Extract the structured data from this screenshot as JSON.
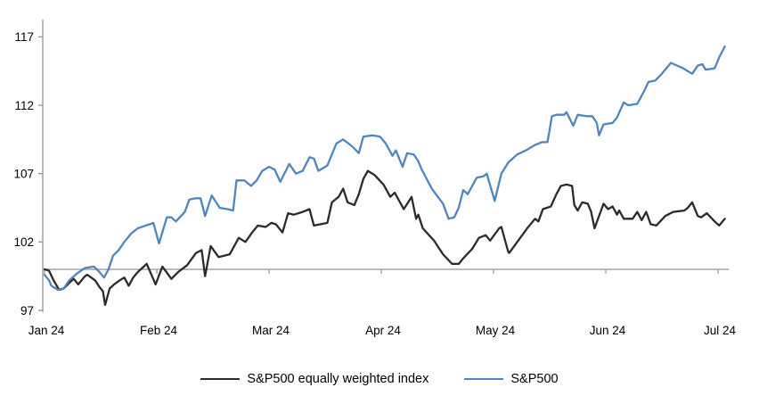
{
  "colors": {
    "background": "#ffffff",
    "axis_gray": "#9a9a9a",
    "baseline_gray": "#a6a6a6",
    "text": "#000000",
    "equal_weight_line": "#2b2b2b",
    "sp500_line": "#4e86bd"
  },
  "chart_data": {
    "type": "line",
    "title": "",
    "xlabel": "",
    "ylabel": "",
    "x_axis": {
      "tick_labels": [
        "Jan 24",
        "Feb 24",
        "Mar 24",
        "Apr 24",
        "May 24",
        "Jun 24",
        "Jul 24"
      ],
      "tick_positions": [
        0,
        1,
        2,
        3,
        4,
        5,
        6
      ],
      "range": [
        0,
        6.1
      ]
    },
    "y_axis": {
      "ticks": [
        97,
        102,
        107,
        112,
        117
      ],
      "range": [
        96.5,
        118.2
      ],
      "grid": false
    },
    "baseline_value": 100,
    "legend_position": "bottom",
    "series": [
      {
        "name": "S&P500 equally weighted index",
        "color": "#2b2b2b",
        "points": [
          [
            0.0,
            100.0
          ],
          [
            0.04,
            99.9
          ],
          [
            0.08,
            99.2
          ],
          [
            0.13,
            98.5
          ],
          [
            0.17,
            98.6
          ],
          [
            0.22,
            99.0
          ],
          [
            0.26,
            99.3
          ],
          [
            0.3,
            98.9
          ],
          [
            0.36,
            99.5
          ],
          [
            0.38,
            99.6
          ],
          [
            0.45,
            99.2
          ],
          [
            0.49,
            98.7
          ],
          [
            0.52,
            98.4
          ],
          [
            0.54,
            97.4
          ],
          [
            0.58,
            98.6
          ],
          [
            0.62,
            98.9
          ],
          [
            0.67,
            99.2
          ],
          [
            0.71,
            99.4
          ],
          [
            0.75,
            98.8
          ],
          [
            0.79,
            99.4
          ],
          [
            0.83,
            99.8
          ],
          [
            0.91,
            100.4
          ],
          [
            0.99,
            98.9
          ],
          [
            1.05,
            100.2
          ],
          [
            1.13,
            99.3
          ],
          [
            1.19,
            99.8
          ],
          [
            1.27,
            100.3
          ],
          [
            1.35,
            101.2
          ],
          [
            1.4,
            101.4
          ],
          [
            1.43,
            99.5
          ],
          [
            1.48,
            101.7
          ],
          [
            1.55,
            100.9
          ],
          [
            1.6,
            101.0
          ],
          [
            1.65,
            101.1
          ],
          [
            1.73,
            102.3
          ],
          [
            1.79,
            102.0
          ],
          [
            1.85,
            102.7
          ],
          [
            1.9,
            103.2
          ],
          [
            1.97,
            103.1
          ],
          [
            2.02,
            103.4
          ],
          [
            2.06,
            103.3
          ],
          [
            2.12,
            102.7
          ],
          [
            2.17,
            104.1
          ],
          [
            2.22,
            104.0
          ],
          [
            2.3,
            104.2
          ],
          [
            2.36,
            104.4
          ],
          [
            2.4,
            103.2
          ],
          [
            2.46,
            103.3
          ],
          [
            2.52,
            103.4
          ],
          [
            2.56,
            104.9
          ],
          [
            2.62,
            105.3
          ],
          [
            2.66,
            105.9
          ],
          [
            2.7,
            104.9
          ],
          [
            2.76,
            104.7
          ],
          [
            2.8,
            105.5
          ],
          [
            2.84,
            106.6
          ],
          [
            2.88,
            107.2
          ],
          [
            2.94,
            106.9
          ],
          [
            3.02,
            106.2
          ],
          [
            3.08,
            105.3
          ],
          [
            3.12,
            105.6
          ],
          [
            3.2,
            104.4
          ],
          [
            3.24,
            104.9
          ],
          [
            3.27,
            105.3
          ],
          [
            3.31,
            103.7
          ],
          [
            3.33,
            104.0
          ],
          [
            3.37,
            103.0
          ],
          [
            3.47,
            102.1
          ],
          [
            3.55,
            101.1
          ],
          [
            3.63,
            100.4
          ],
          [
            3.69,
            100.4
          ],
          [
            3.73,
            100.8
          ],
          [
            3.81,
            101.5
          ],
          [
            3.87,
            102.3
          ],
          [
            3.93,
            102.5
          ],
          [
            3.97,
            102.1
          ],
          [
            4.05,
            103.0
          ],
          [
            4.07,
            103.1
          ],
          [
            4.13,
            101.3
          ],
          [
            4.14,
            101.2
          ],
          [
            4.22,
            102.1
          ],
          [
            4.3,
            103.0
          ],
          [
            4.37,
            103.7
          ],
          [
            4.4,
            103.5
          ],
          [
            4.44,
            104.4
          ],
          [
            4.51,
            104.6
          ],
          [
            4.56,
            105.5
          ],
          [
            4.6,
            106.1
          ],
          [
            4.65,
            106.2
          ],
          [
            4.7,
            106.1
          ],
          [
            4.72,
            104.7
          ],
          [
            4.75,
            104.3
          ],
          [
            4.79,
            104.9
          ],
          [
            4.84,
            104.8
          ],
          [
            4.87,
            104.2
          ],
          [
            4.9,
            103.0
          ],
          [
            4.98,
            104.8
          ],
          [
            5.02,
            104.4
          ],
          [
            5.06,
            104.6
          ],
          [
            5.1,
            104.0
          ],
          [
            5.12,
            104.3
          ],
          [
            5.16,
            103.7
          ],
          [
            5.24,
            103.7
          ],
          [
            5.28,
            104.2
          ],
          [
            5.32,
            103.6
          ],
          [
            5.36,
            104.2
          ],
          [
            5.4,
            103.3
          ],
          [
            5.45,
            103.2
          ],
          [
            5.53,
            103.9
          ],
          [
            5.6,
            104.2
          ],
          [
            5.7,
            104.3
          ],
          [
            5.73,
            104.5
          ],
          [
            5.77,
            104.9
          ],
          [
            5.82,
            103.9
          ],
          [
            5.85,
            103.8
          ],
          [
            5.9,
            104.1
          ],
          [
            5.97,
            103.5
          ],
          [
            6.01,
            103.2
          ],
          [
            6.06,
            103.7
          ]
        ]
      },
      {
        "name": "S&P500",
        "color": "#4e86bd",
        "points": [
          [
            0.0,
            99.6
          ],
          [
            0.04,
            99.2
          ],
          [
            0.06,
            98.8
          ],
          [
            0.12,
            98.5
          ],
          [
            0.17,
            98.6
          ],
          [
            0.22,
            99.2
          ],
          [
            0.29,
            99.7
          ],
          [
            0.36,
            100.1
          ],
          [
            0.44,
            100.2
          ],
          [
            0.49,
            99.8
          ],
          [
            0.53,
            99.4
          ],
          [
            0.57,
            100.0
          ],
          [
            0.61,
            101.0
          ],
          [
            0.66,
            101.4
          ],
          [
            0.71,
            102.0
          ],
          [
            0.77,
            102.6
          ],
          [
            0.83,
            103.0
          ],
          [
            0.9,
            103.2
          ],
          [
            0.94,
            103.3
          ],
          [
            0.97,
            103.4
          ],
          [
            1.02,
            101.9
          ],
          [
            1.09,
            103.8
          ],
          [
            1.13,
            103.8
          ],
          [
            1.17,
            103.5
          ],
          [
            1.25,
            104.2
          ],
          [
            1.29,
            105.1
          ],
          [
            1.35,
            105.2
          ],
          [
            1.39,
            105.2
          ],
          [
            1.43,
            103.9
          ],
          [
            1.49,
            105.4
          ],
          [
            1.56,
            104.5
          ],
          [
            1.63,
            104.4
          ],
          [
            1.68,
            104.3
          ],
          [
            1.71,
            106.5
          ],
          [
            1.78,
            106.5
          ],
          [
            1.84,
            106.1
          ],
          [
            1.89,
            106.5
          ],
          [
            1.94,
            107.2
          ],
          [
            2.0,
            107.5
          ],
          [
            2.05,
            107.3
          ],
          [
            2.1,
            106.4
          ],
          [
            2.18,
            107.7
          ],
          [
            2.24,
            107.0
          ],
          [
            2.3,
            107.2
          ],
          [
            2.36,
            108.2
          ],
          [
            2.4,
            108.1
          ],
          [
            2.44,
            107.2
          ],
          [
            2.52,
            107.6
          ],
          [
            2.6,
            109.2
          ],
          [
            2.66,
            109.5
          ],
          [
            2.74,
            109.0
          ],
          [
            2.8,
            108.5
          ],
          [
            2.84,
            109.7
          ],
          [
            2.92,
            109.8
          ],
          [
            2.99,
            109.7
          ],
          [
            3.04,
            109.2
          ],
          [
            3.1,
            108.3
          ],
          [
            3.13,
            108.7
          ],
          [
            3.19,
            107.5
          ],
          [
            3.23,
            108.5
          ],
          [
            3.29,
            108.4
          ],
          [
            3.33,
            107.9
          ],
          [
            3.36,
            107.3
          ],
          [
            3.45,
            105.9
          ],
          [
            3.55,
            104.8
          ],
          [
            3.6,
            103.7
          ],
          [
            3.65,
            103.8
          ],
          [
            3.69,
            104.5
          ],
          [
            3.73,
            105.8
          ],
          [
            3.77,
            105.5
          ],
          [
            3.85,
            106.7
          ],
          [
            3.91,
            106.8
          ],
          [
            3.94,
            107.0
          ],
          [
            4.01,
            105.0
          ],
          [
            4.07,
            107.0
          ],
          [
            4.13,
            107.8
          ],
          [
            4.21,
            108.4
          ],
          [
            4.29,
            108.7
          ],
          [
            4.37,
            109.1
          ],
          [
            4.43,
            109.3
          ],
          [
            4.48,
            109.3
          ],
          [
            4.5,
            110.2
          ],
          [
            4.52,
            111.2
          ],
          [
            4.56,
            111.3
          ],
          [
            4.63,
            111.3
          ],
          [
            4.65,
            111.5
          ],
          [
            4.71,
            110.5
          ],
          [
            4.75,
            111.3
          ],
          [
            4.83,
            111.2
          ],
          [
            4.88,
            111.2
          ],
          [
            4.92,
            110.7
          ],
          [
            4.94,
            109.8
          ],
          [
            4.98,
            110.6
          ],
          [
            5.06,
            110.7
          ],
          [
            5.1,
            111.1
          ],
          [
            5.16,
            112.2
          ],
          [
            5.2,
            112.0
          ],
          [
            5.28,
            112.1
          ],
          [
            5.34,
            113.0
          ],
          [
            5.38,
            113.7
          ],
          [
            5.44,
            113.8
          ],
          [
            5.5,
            114.3
          ],
          [
            5.57,
            115.0
          ],
          [
            5.58,
            115.1
          ],
          [
            5.69,
            114.7
          ],
          [
            5.77,
            114.3
          ],
          [
            5.82,
            114.9
          ],
          [
            5.86,
            115.0
          ],
          [
            5.89,
            114.6
          ],
          [
            5.97,
            114.7
          ],
          [
            6.01,
            115.5
          ],
          [
            6.06,
            116.3
          ]
        ]
      }
    ]
  }
}
